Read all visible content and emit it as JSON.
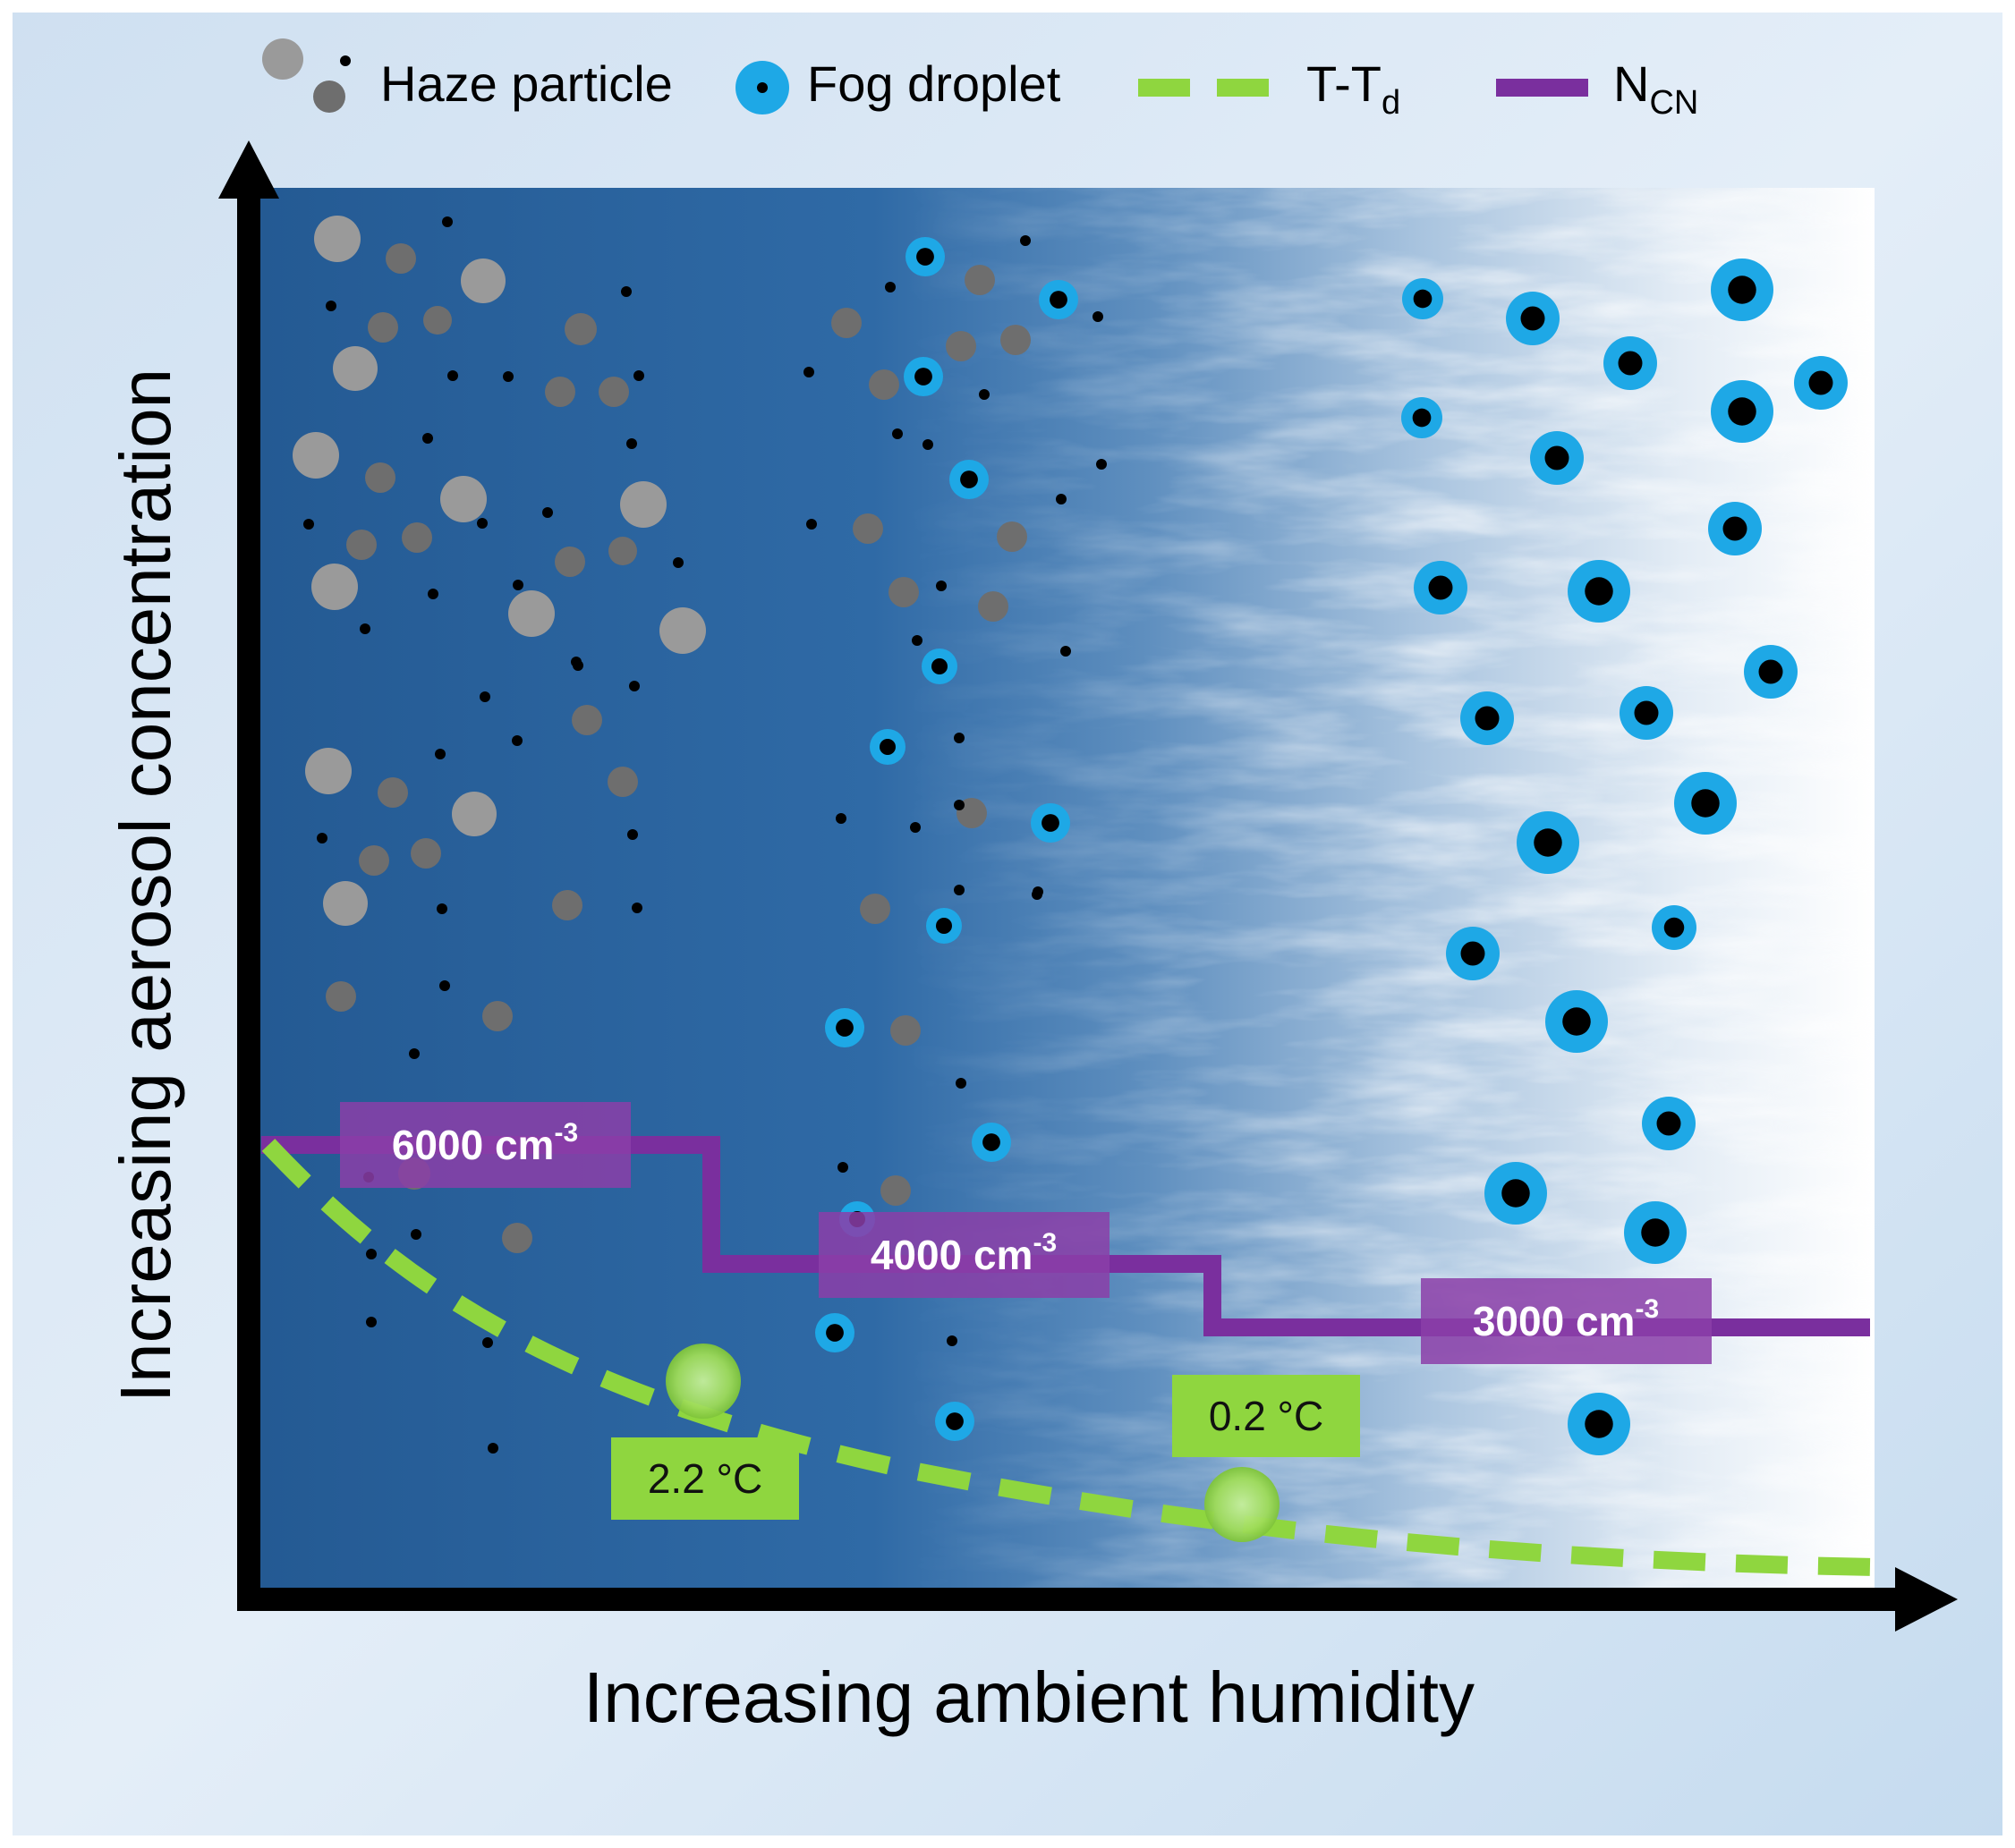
{
  "colors": {
    "haze_light": "#9a9a9a",
    "haze_dark": "#6e6e6e",
    "fog_droplet": "#1ea8e6",
    "ncn_line": "#7a2f9e",
    "ncn_label_box": "#8b3ea8",
    "t_td_line": "#8fd63f",
    "t_td_label_box": "#8fd63f",
    "plot_dark_blue": "#2a5e95",
    "frame_bg": "#d8e7f5"
  },
  "legend": {
    "haze": "Haze particle",
    "fog": "Fog droplet",
    "t_td": "T-T",
    "t_td_sub": "d",
    "ncn": "N",
    "ncn_sub": "CN"
  },
  "axes": {
    "y_label": "Increasing aerosol  concentration",
    "x_label": "Increasing  ambient humidity"
  },
  "ncn_labels": [
    {
      "base": "6000 cm",
      "exp": "-3"
    },
    {
      "base": "4000 cm",
      "exp": "-3"
    },
    {
      "base": "3000 cm",
      "exp": "-3"
    }
  ],
  "t_td_labels": [
    "2.2 °C",
    "0.2 °C"
  ],
  "icons": {
    "haze_particle": "grey-filled-circle",
    "fog_droplet": "blue-circle-with-black-core",
    "arrow": "black-triangle-arrowhead"
  }
}
